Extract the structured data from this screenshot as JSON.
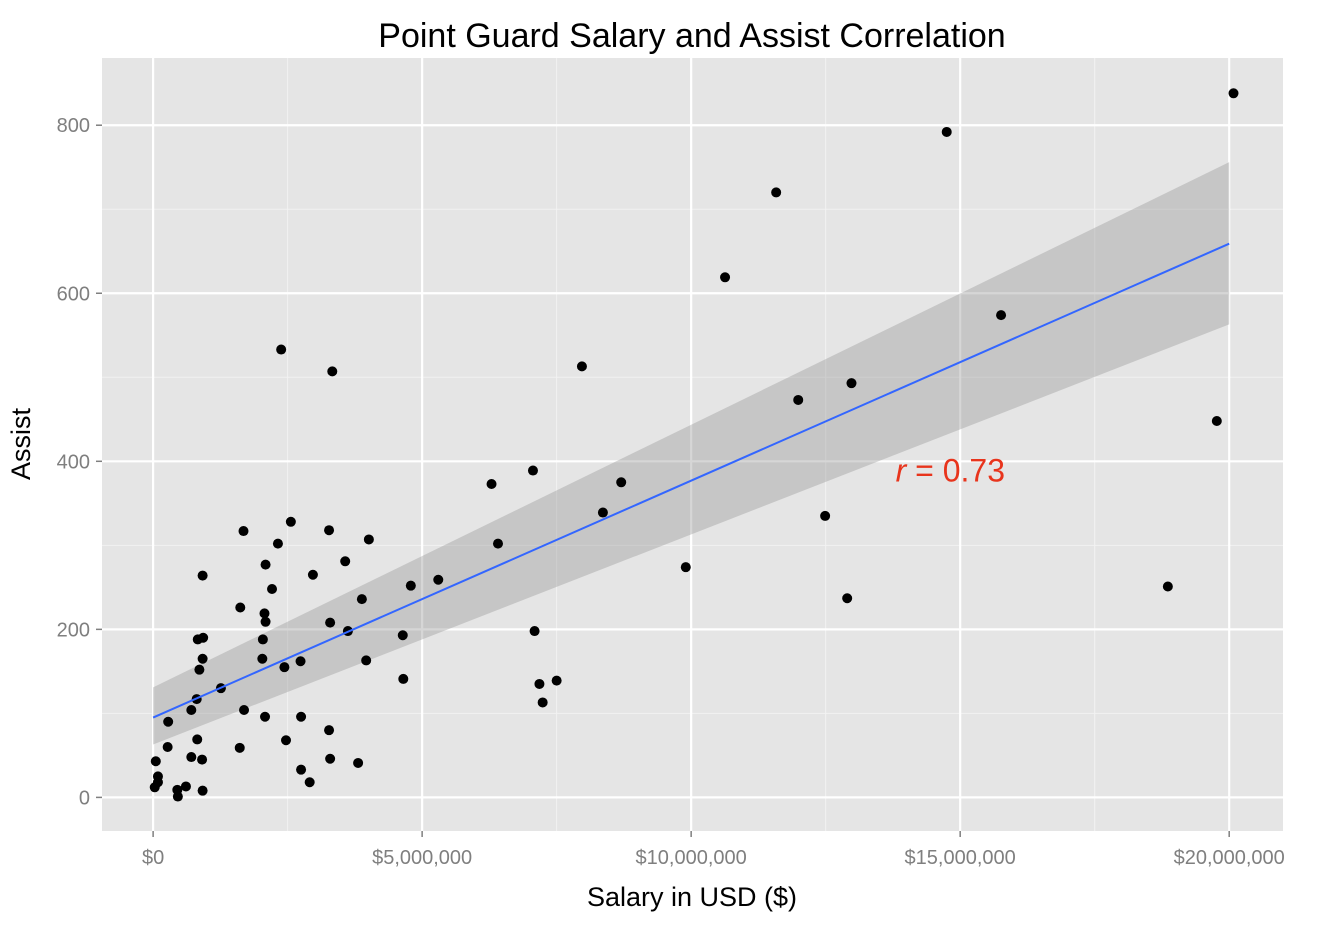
{
  "chart_data": {
    "type": "scatter",
    "title": "Point Guard Salary and Assist Correlation",
    "xlabel": "Salary in USD ($)",
    "ylabel": "Assist",
    "xlim": [
      -950000,
      21000000
    ],
    "ylim": [
      -40,
      880
    ],
    "x_ticks": [
      0,
      5000000,
      10000000,
      15000000,
      20000000
    ],
    "x_tick_labels": [
      "$0",
      "$5,000,000",
      "$10,000,000",
      "$15,000,000",
      "$20,000,000"
    ],
    "y_ticks": [
      0,
      200,
      400,
      600,
      800
    ],
    "y_tick_labels": [
      "0",
      "200",
      "400",
      "600",
      "800"
    ],
    "grid": true,
    "annotation": {
      "italic": "r",
      "text": " = 0.73",
      "x": 13800000,
      "y": 390
    },
    "regression": {
      "x": [
        0,
        20000000
      ],
      "y": [
        95,
        659
      ],
      "ci_lower": [
        63,
        563
      ],
      "ci_upper": [
        131,
        756
      ]
    },
    "points": [
      [
        20080000,
        838
      ],
      [
        14750000,
        792
      ],
      [
        11580000,
        720
      ],
      [
        10630000,
        619
      ],
      [
        15760000,
        574
      ],
      [
        7970000,
        513
      ],
      [
        12980000,
        493
      ],
      [
        11990000,
        473
      ],
      [
        19770000,
        448
      ],
      [
        7060000,
        389
      ],
      [
        8700000,
        375
      ],
      [
        6290000,
        373
      ],
      [
        8360000,
        339
      ],
      [
        12490000,
        335
      ],
      [
        6410000,
        302
      ],
      [
        9900000,
        274
      ],
      [
        18860000,
        251
      ],
      [
        5300000,
        259
      ],
      [
        4790000,
        252
      ],
      [
        12900000,
        237
      ],
      [
        2380000,
        533
      ],
      [
        3330000,
        507
      ],
      [
        2560000,
        328
      ],
      [
        1680000,
        317
      ],
      [
        3270000,
        318
      ],
      [
        4010000,
        307
      ],
      [
        2320000,
        302
      ],
      [
        3570000,
        281
      ],
      [
        2090000,
        277
      ],
      [
        2970000,
        265
      ],
      [
        2210000,
        248
      ],
      [
        3880000,
        236
      ],
      [
        1620000,
        226
      ],
      [
        2070000,
        219
      ],
      [
        2090000,
        209
      ],
      [
        3290000,
        208
      ],
      [
        3620000,
        198
      ],
      [
        4640000,
        193
      ],
      [
        7090000,
        198
      ],
      [
        2040000,
        188
      ],
      [
        930000,
        190
      ],
      [
        830000,
        188
      ],
      [
        920000,
        165
      ],
      [
        2030000,
        165
      ],
      [
        3960000,
        163
      ],
      [
        2740000,
        162
      ],
      [
        2440000,
        155
      ],
      [
        860000,
        152
      ],
      [
        4650000,
        141
      ],
      [
        7500000,
        139
      ],
      [
        7180000,
        135
      ],
      [
        1260000,
        130
      ],
      [
        810000,
        117
      ],
      [
        7240000,
        113
      ],
      [
        710000,
        104
      ],
      [
        1690000,
        104
      ],
      [
        2080000,
        96
      ],
      [
        2750000,
        96
      ],
      [
        280000,
        90
      ],
      [
        3270000,
        80
      ],
      [
        820000,
        69
      ],
      [
        2470000,
        68
      ],
      [
        270000,
        60
      ],
      [
        1610000,
        59
      ],
      [
        710000,
        48
      ],
      [
        3290000,
        46
      ],
      [
        910000,
        45
      ],
      [
        3810000,
        41
      ],
      [
        50000,
        43
      ],
      [
        90000,
        25
      ],
      [
        90000,
        18
      ],
      [
        2750000,
        33
      ],
      [
        2910000,
        18
      ],
      [
        610000,
        13
      ],
      [
        450000,
        9
      ],
      [
        920000,
        8
      ],
      [
        30000,
        12
      ],
      [
        460000,
        1
      ],
      [
        920000,
        264
      ]
    ]
  }
}
